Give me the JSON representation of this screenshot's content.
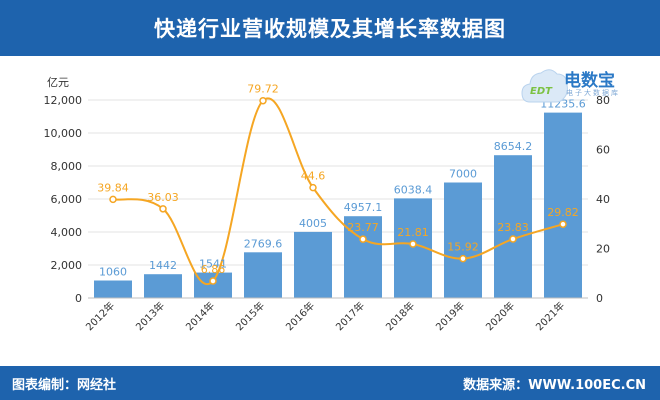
{
  "header": {
    "title": "快递行业营收规模及其增长率数据图"
  },
  "footer": {
    "left": "图表编制：网经社",
    "right": "数据来源：WWW.100EC.CN"
  },
  "logo": {
    "main": "电数宝",
    "sub": "电子大数据库",
    "mark": "EDT"
  },
  "colors": {
    "bar": "#5b9bd5",
    "line": "#f5a623",
    "header": "#1e63ad",
    "bar_label": "#5b9bd5",
    "line_label": "#f5a623"
  },
  "chart_data": {
    "type": "bar",
    "categories": [
      "2012年",
      "2013年",
      "2014年",
      "2015年",
      "2016年",
      "2017年",
      "2018年",
      "2019年",
      "2020年",
      "2021年"
    ],
    "series": [
      {
        "values": [
          1060,
          1442,
          1541,
          2769.6,
          4005,
          4957.1,
          6038.4,
          7000,
          8654.2,
          11235.6
        ],
        "labels": [
          "1060",
          "1442",
          "1541",
          "2769.6",
          "4005",
          "4957.1",
          "6038.4",
          "7000",
          "8654.2",
          "11235.6"
        ],
        "axis": "left",
        "type": "bar"
      },
      {
        "values": [
          39.84,
          36.03,
          6.86,
          79.72,
          44.6,
          23.77,
          21.81,
          15.92,
          23.83,
          29.82
        ],
        "labels": [
          "39.84",
          "36.03",
          "6.86",
          "79.72",
          "44.6",
          "23.77",
          "21.81",
          "15.92",
          "23.83",
          "29.82"
        ],
        "axis": "right",
        "type": "line"
      }
    ],
    "ylabel": "亿元",
    "ylim": [
      0,
      12000
    ],
    "yticks": [
      "0",
      "2,000",
      "4,000",
      "6,000",
      "8,000",
      "10,000",
      "12,000"
    ],
    "y2lim": [
      0,
      80
    ],
    "y2ticks": [
      "0",
      "20",
      "40",
      "60",
      "80"
    ],
    "grid": true
  }
}
